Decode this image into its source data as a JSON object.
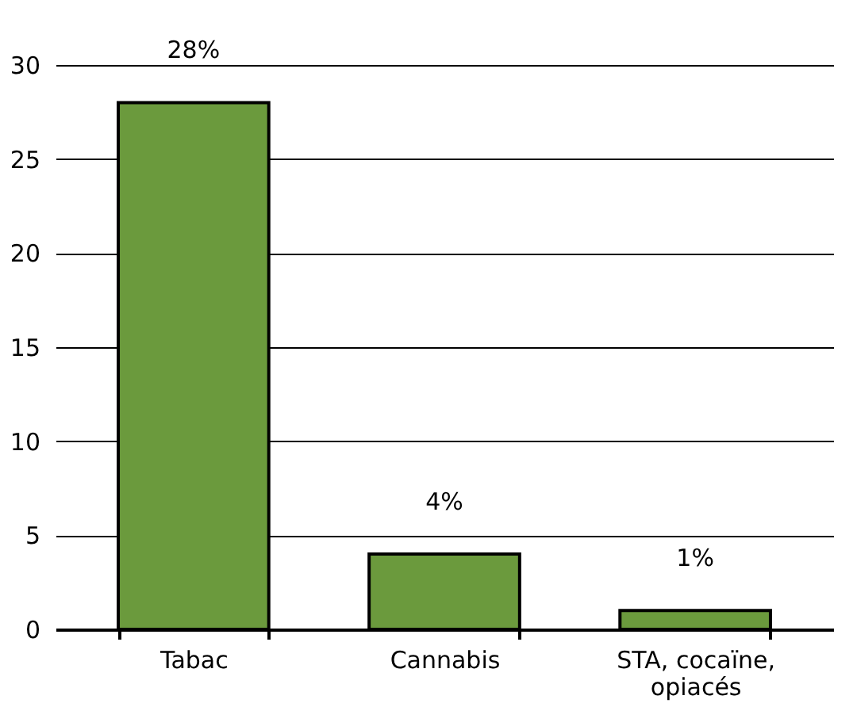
{
  "chart_data": {
    "type": "bar",
    "categories": [
      "Tabac",
      "Cannabis",
      "STA, cocaïne, opiacés"
    ],
    "values": [
      28,
      4,
      1
    ],
    "value_labels": [
      "28%",
      "4%",
      "1%"
    ],
    "color": "#6b9a3d",
    "ylim": [
      0,
      30
    ],
    "yticks": [
      0,
      5,
      10,
      15,
      20,
      25,
      30
    ],
    "grid": "y"
  }
}
